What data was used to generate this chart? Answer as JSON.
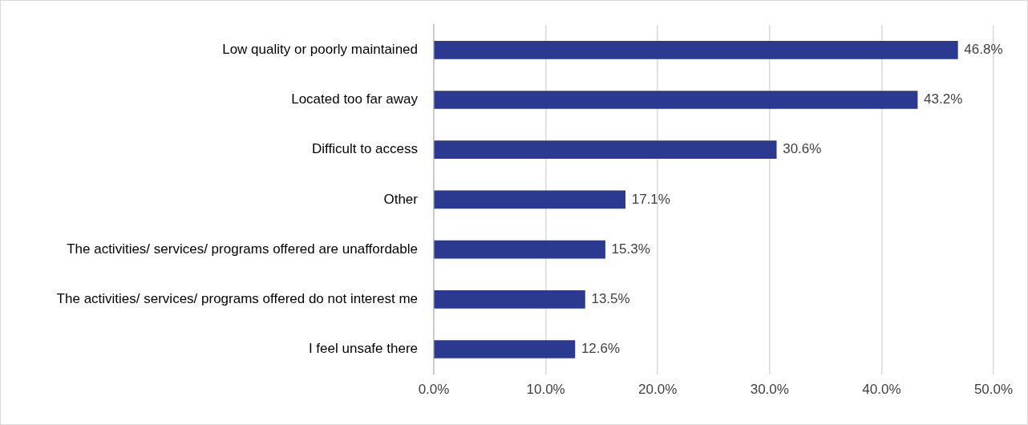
{
  "chart_data": {
    "type": "bar",
    "orientation": "horizontal",
    "categories": [
      "Low quality or poorly maintained",
      "Located too far away",
      "Difficult to access",
      "Other",
      "The activities/ services/ programs offered are unaffordable",
      "The activities/ services/ programs offered do not interest me",
      "I feel unsafe there"
    ],
    "values": [
      46.8,
      43.2,
      30.6,
      17.1,
      15.3,
      13.5,
      12.6
    ],
    "value_labels": [
      "46.8%",
      "43.2%",
      "30.6%",
      "17.1%",
      "15.3%",
      "13.5%",
      "12.6%"
    ],
    "color": "#2b3990",
    "xlim": [
      0,
      50
    ],
    "xticks": [
      {
        "value": 0,
        "label": "0.0%"
      },
      {
        "value": 10,
        "label": "10.0%"
      },
      {
        "value": 20,
        "label": "20.0%"
      },
      {
        "value": 30,
        "label": "30.0%"
      },
      {
        "value": 40,
        "label": "40.0%"
      },
      {
        "value": 50,
        "label": "50.0%"
      }
    ],
    "grid": "x",
    "legend": false
  }
}
